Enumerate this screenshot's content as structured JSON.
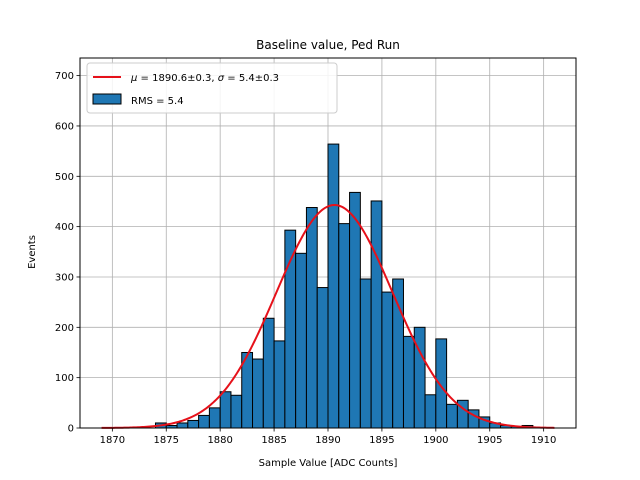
{
  "chart_data": {
    "type": "bar",
    "title": "Baseline value, Ped Run",
    "xlabel": "Sample Value [ADC Counts]",
    "ylabel": "Events",
    "xlim": [
      1867,
      1913
    ],
    "ylim": [
      0,
      735
    ],
    "xticks": [
      1870,
      1875,
      1880,
      1885,
      1890,
      1895,
      1900,
      1905,
      1910
    ],
    "yticks": [
      0,
      100,
      200,
      300,
      400,
      500,
      600,
      700
    ],
    "grid": true,
    "legend_placement": "top-left",
    "bin_width": 1,
    "histogram": {
      "name": "RMS = 5.4",
      "color": "#1f77b4",
      "edge_color": "#000000",
      "bin_starts": [
        1874,
        1875,
        1876,
        1877,
        1878,
        1879,
        1880,
        1881,
        1882,
        1883,
        1884,
        1885,
        1886,
        1887,
        1888,
        1889,
        1890,
        1891,
        1892,
        1893,
        1894,
        1895,
        1896,
        1897,
        1898,
        1899,
        1900,
        1901,
        1902,
        1903,
        1904,
        1905,
        1906,
        1907,
        1908
      ],
      "values": [
        10,
        5,
        10,
        15,
        25,
        40,
        72,
        65,
        150,
        137,
        218,
        173,
        393,
        347,
        438,
        279,
        564,
        406,
        468,
        296,
        451,
        270,
        296,
        182,
        200,
        66,
        177,
        47,
        55,
        36,
        22,
        10,
        5,
        3,
        5
      ]
    },
    "fit": {
      "name": "$\\mu = 1890.6\\pm0.3$, $\\sigma = 5.4\\pm0.3$",
      "label_mu": "μ",
      "label_mu_value": " = 1890.6±0.3, ",
      "label_sigma": "σ",
      "label_sigma_value": " = 5.4±0.3",
      "color": "#e6111a",
      "mu": 1890.6,
      "sigma": 5.4,
      "amplitude": 443,
      "x_range": [
        1869,
        1911
      ]
    }
  }
}
